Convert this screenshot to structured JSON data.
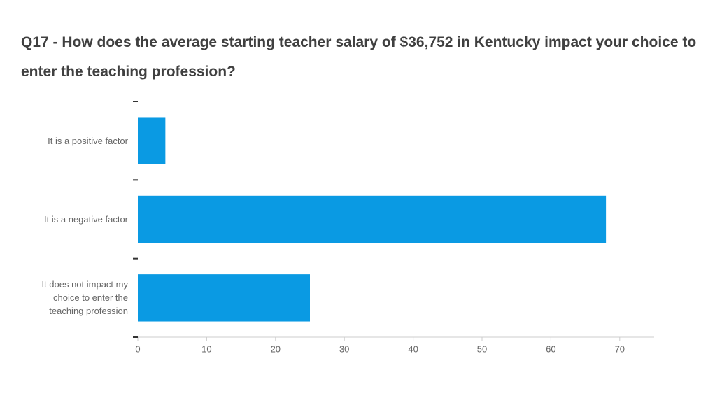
{
  "chart_data": {
    "type": "bar",
    "orientation": "horizontal",
    "title": "Q17 - How does the average starting teacher salary of $36,752 in Kentucky impact your choice to enter the teaching profession?",
    "categories": [
      "It is a positive factor",
      "It is a negative factor",
      "It does not impact my choice to enter the teaching profession"
    ],
    "values": [
      4,
      68,
      25
    ],
    "color": "#0a9ae3",
    "xlim": [
      0,
      75
    ],
    "xticks": [
      0,
      10,
      20,
      30,
      40,
      50,
      60,
      70
    ]
  }
}
